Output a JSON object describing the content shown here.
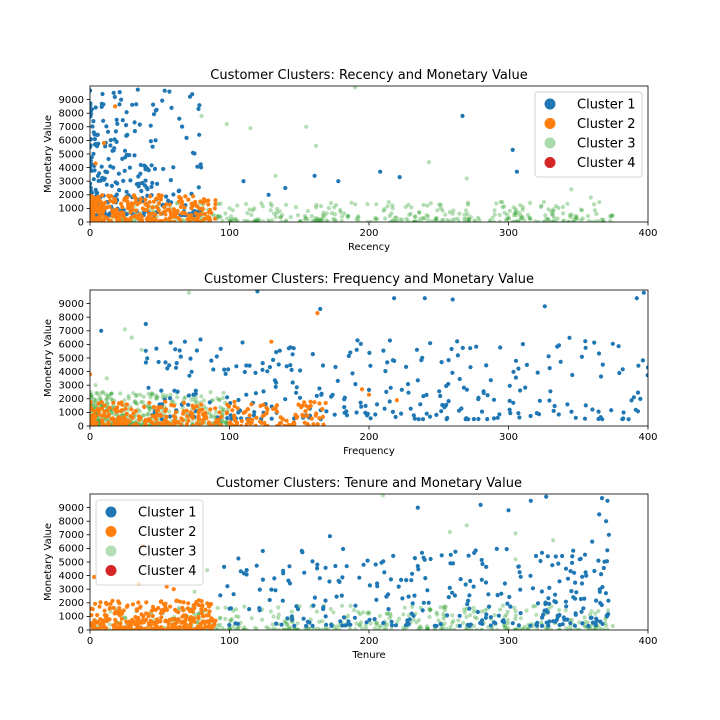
{
  "chart_data": [
    {
      "type": "scatter",
      "title": "Customer Clusters: Recency and Monetary Value",
      "xlabel": "Recency",
      "ylabel": "Monetary Value",
      "xlim": [
        0,
        400
      ],
      "ylim": [
        0,
        10000
      ],
      "xticks": [
        "0",
        "100",
        "200",
        "300",
        "400"
      ],
      "yticks": [
        "0",
        "1000",
        "2000",
        "3000",
        "4000",
        "5000",
        "6000",
        "7000",
        "8000",
        "9000"
      ],
      "grid": false,
      "legend_position": "top-right",
      "series": [
        {
          "name": "Cluster 1",
          "color": "#1f77b4",
          "opacity": 1.0,
          "region": {
            "x": [
              0,
              80
            ],
            "y": [
              500,
              9800
            ],
            "x_skew": 2.2,
            "y_skew": 2.0
          },
          "extras": [
            [
              267,
              7800
            ],
            [
              303,
              5300
            ],
            [
              306,
              3700
            ],
            [
              208,
              3700
            ],
            [
              222,
              3300
            ],
            [
              178,
              3000
            ],
            [
              161,
              3400
            ],
            [
              140,
              2500
            ],
            [
              128,
              2000
            ],
            [
              110,
              3000
            ]
          ]
        },
        {
          "name": "Cluster 2",
          "color": "#ff7f0e",
          "opacity": 1.0,
          "region": {
            "x": [
              0,
              90
            ],
            "y": [
              0,
              2000
            ],
            "x_skew": 1.6,
            "y_skew": 1.4
          },
          "extras": [
            [
              18,
              8500
            ],
            [
              10,
              5800
            ],
            [
              4,
              4300
            ]
          ]
        },
        {
          "name": "Cluster 3",
          "color": "#2ca02c",
          "opacity": 0.35,
          "region": {
            "x": [
              0,
              375
            ],
            "y": [
              0,
              1500
            ],
            "x_skew": 1.0,
            "y_skew": 2.2
          },
          "extras": [
            [
              190,
              9900
            ],
            [
              155,
              7000
            ],
            [
              162,
              5600
            ],
            [
              243,
              4400
            ],
            [
              80,
              7800
            ],
            [
              98,
              7200
            ],
            [
              133,
              3400
            ],
            [
              115,
              6900
            ],
            [
              270,
              3200
            ],
            [
              345,
              2400
            ],
            [
              359,
              1800
            ]
          ]
        },
        {
          "name": "Cluster 4",
          "color": "#d62728",
          "opacity": 1.0,
          "region": null,
          "extras": []
        }
      ]
    },
    {
      "type": "scatter",
      "title": "Customer Clusters: Frequency and Monetary Value",
      "xlabel": "Frequency",
      "ylabel": "Monetary Value",
      "xlim": [
        0,
        400
      ],
      "ylim": [
        0,
        10000
      ],
      "xticks": [
        "0",
        "100",
        "200",
        "300",
        "400"
      ],
      "yticks": [
        "0",
        "1000",
        "2000",
        "3000",
        "4000",
        "5000",
        "6000",
        "7000",
        "8000",
        "9000"
      ],
      "grid": false,
      "legend_position": "top-right",
      "series": [
        {
          "name": "Cluster 1",
          "color": "#1f77b4",
          "opacity": 1.0,
          "region": {
            "x": [
              40,
              400
            ],
            "y": [
              500,
              6500
            ],
            "x_skew": 1.0,
            "y_skew": 1.6
          },
          "extras": [
            [
              8,
              7000
            ],
            [
              40,
              7500
            ],
            [
              68,
              6200
            ],
            [
              120,
              9900
            ],
            [
              165,
              8600
            ],
            [
              218,
              9400
            ],
            [
              240,
              9400
            ],
            [
              260,
              9300
            ],
            [
              326,
              8800
            ],
            [
              392,
              9400
            ],
            [
              397,
              9800
            ],
            [
              400,
              4300
            ]
          ]
        },
        {
          "name": "Cluster 2",
          "color": "#ff7f0e",
          "opacity": 1.0,
          "region": {
            "x": [
              0,
              170
            ],
            "y": [
              0,
              1800
            ],
            "x_skew": 1.4,
            "y_skew": 1.5
          },
          "extras": [
            [
              163,
              8300
            ],
            [
              130,
              6200
            ],
            [
              0,
              3800
            ],
            [
              200,
              2300
            ],
            [
              220,
              1900
            ],
            [
              195,
              2700
            ]
          ]
        },
        {
          "name": "Cluster 3",
          "color": "#2ca02c",
          "opacity": 0.35,
          "region": {
            "x": [
              0,
              100
            ],
            "y": [
              0,
              2500
            ],
            "x_skew": 1.6,
            "y_skew": 2.0
          },
          "extras": [
            [
              25,
              7100
            ],
            [
              30,
              6500
            ],
            [
              71,
              9800
            ],
            [
              37,
              5600
            ],
            [
              4,
              3000
            ],
            [
              12,
              3500
            ]
          ]
        },
        {
          "name": "Cluster 4",
          "color": "#d62728",
          "opacity": 1.0,
          "region": null,
          "extras": []
        }
      ]
    },
    {
      "type": "scatter",
      "title": "Customer Clusters: Tenure and Monetary Value",
      "xlabel": "Tenure",
      "ylabel": "Monetary Value",
      "xlim": [
        0,
        400
      ],
      "ylim": [
        0,
        10000
      ],
      "xticks": [
        "0",
        "100",
        "200",
        "300",
        "400"
      ],
      "yticks": [
        "0",
        "1000",
        "2000",
        "3000",
        "4000",
        "5000",
        "6000",
        "7000",
        "8000",
        "9000"
      ],
      "grid": false,
      "legend_position": "top-left",
      "series": [
        {
          "name": "Cluster 1",
          "color": "#1f77b4",
          "opacity": 1.0,
          "region": {
            "x": [
              85,
              375
            ],
            "y": [
              300,
              6000
            ],
            "x_skew": 0.7,
            "y_skew": 1.8
          },
          "extras": [
            [
              172,
              6900
            ],
            [
              235,
              9000
            ],
            [
              280,
              9200
            ],
            [
              300,
              8800
            ],
            [
              316,
              9500
            ],
            [
              327,
              9800
            ],
            [
              367,
              9700
            ],
            [
              371,
              9500
            ],
            [
              365,
              8500
            ],
            [
              370,
              8000
            ],
            [
              372,
              7000
            ],
            [
              360,
              6500
            ]
          ]
        },
        {
          "name": "Cluster 2",
          "color": "#ff7f0e",
          "opacity": 1.0,
          "region": {
            "x": [
              0,
              90
            ],
            "y": [
              0,
              2200
            ],
            "x_skew": 1.0,
            "y_skew": 1.8
          },
          "extras": [
            [
              35,
              3400
            ],
            [
              55,
              3200
            ],
            [
              60,
              3000
            ],
            [
              38,
              6200
            ],
            [
              3,
              3900
            ]
          ]
        },
        {
          "name": "Cluster 3",
          "color": "#2ca02c",
          "opacity": 0.35,
          "region": {
            "x": [
              0,
              375
            ],
            "y": [
              0,
              1800
            ],
            "x_skew": 0.8,
            "y_skew": 2.2
          },
          "extras": [
            [
              210,
              9900
            ],
            [
              270,
              7700
            ],
            [
              258,
              7200
            ],
            [
              305,
              7100
            ],
            [
              332,
              6600
            ],
            [
              84,
              4400
            ],
            [
              75,
              2800
            ],
            [
              305,
              5200
            ]
          ]
        },
        {
          "name": "Cluster 4",
          "color": "#d62728",
          "opacity": 1.0,
          "region": null,
          "extras": []
        }
      ]
    }
  ]
}
